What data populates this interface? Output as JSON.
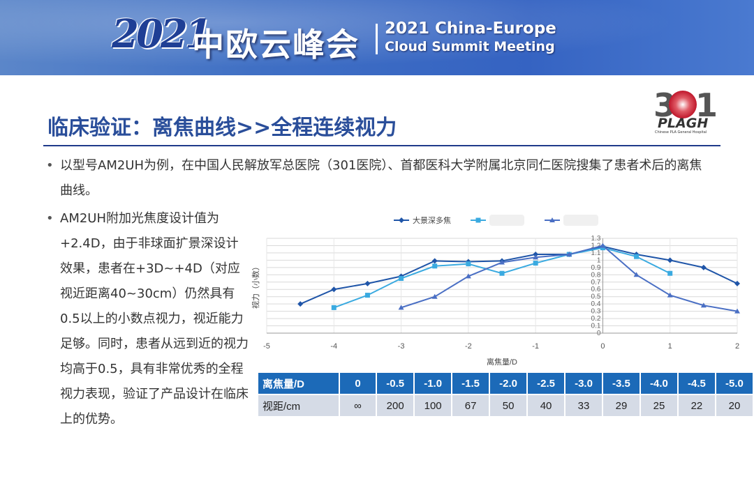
{
  "banner": {
    "year": "2021",
    "summit_cn": "中欧云峰会",
    "summit_en_line1": "2021 China-Europe",
    "summit_en_line2": "Cloud Summit Meeting"
  },
  "logo": {
    "digits": "301",
    "name": "PLAGH",
    "subtitle": "Chinese PLA General Hospital"
  },
  "slide": {
    "title": "临床验证：离焦曲线>>全程连续视力",
    "bullet1": "以型号AM2UH为例，在中国人民解放军总医院（301医院）、首都医科大学附属北京同仁医院搜集了患者术后的离焦曲线。",
    "bullet2": "AM2UH附加光焦度设计值为+2.4D，由于非球面扩景深设计效果，患者在+3D~+4D（对应视近距离40~30cm）仍然具有0.5以上的小数点视力，视近能力足够。同时，患者从远到近的视力均高于0.5，具有非常优秀的全程视力表现，验证了产品设计在临床上的优势。"
  },
  "chart_data": {
    "type": "line",
    "xlabel": "离焦量/D",
    "ylabel": "视力（小数）",
    "xlim": [
      -5,
      2
    ],
    "ylim": [
      0,
      1.3
    ],
    "xticks": [
      "-5",
      "-4",
      "-3",
      "-2",
      "-1",
      "0",
      "1",
      "2"
    ],
    "yticks": [
      "0",
      "0.1",
      "0.2",
      "0.3",
      "0.4",
      "0.5",
      "0.6",
      "0.7",
      "0.8",
      "0.9",
      "1",
      "1.1",
      "1.2",
      "1.3"
    ],
    "grid": true,
    "legend_position": "top",
    "series": [
      {
        "name": "大景深多焦",
        "color": "#1f55a8",
        "marker": "diamond",
        "x": [
          -4.5,
          -4,
          -3.5,
          -3,
          -2.5,
          -2,
          -1.5,
          -1,
          -0.5,
          0,
          0.5,
          1,
          1.5,
          2
        ],
        "y": [
          0.4,
          0.6,
          0.68,
          0.78,
          0.99,
          0.98,
          0.99,
          1.08,
          1.08,
          1.19,
          1.08,
          1.0,
          0.9,
          0.68
        ]
      },
      {
        "name": "",
        "color": "#3aaae0",
        "marker": "square",
        "x": [
          -4,
          -3.5,
          -3,
          -2.5,
          -2,
          -1.5,
          -1,
          -0.5,
          0,
          0.5,
          1
        ],
        "y": [
          0.35,
          0.52,
          0.75,
          0.92,
          0.95,
          0.82,
          0.96,
          1.08,
          1.17,
          1.05,
          0.82
        ]
      },
      {
        "name": "",
        "color": "#4a6fc4",
        "marker": "triangle",
        "x": [
          -3,
          -2.5,
          -2,
          -1.5,
          -1,
          -0.5,
          0,
          0.5,
          1,
          1.5,
          2
        ],
        "y": [
          0.35,
          0.5,
          0.78,
          0.97,
          1.04,
          1.08,
          1.2,
          0.8,
          0.52,
          0.38,
          0.3
        ]
      }
    ]
  },
  "table": {
    "row1_header": "离焦量/D",
    "row1": [
      "0",
      "-0.5",
      "-1.0",
      "-1.5",
      "-2.0",
      "-2.5",
      "-3.0",
      "-3.5",
      "-4.0",
      "-4.5",
      "-5.0"
    ],
    "row2_header": "视距/cm",
    "row2": [
      "∞",
      "200",
      "100",
      "67",
      "50",
      "40",
      "33",
      "29",
      "25",
      "22",
      "20"
    ]
  }
}
